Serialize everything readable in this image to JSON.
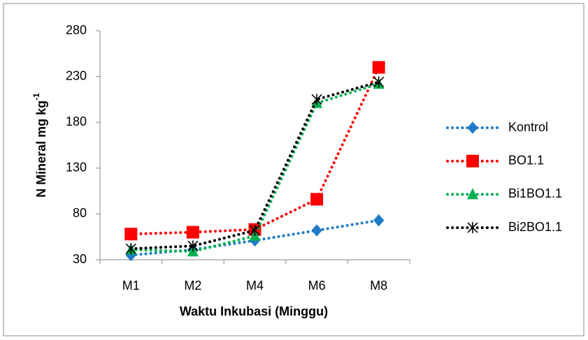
{
  "chart_data": {
    "type": "line",
    "xlabel": "Waktu Inkubasi (Minggu)",
    "ylabel": "N Mineral mg kg",
    "ylabel_sup": "-1",
    "categories": [
      "M1",
      "M2",
      "M4",
      "M6",
      "M8"
    ],
    "ylim": [
      30,
      280
    ],
    "yticks": [
      30,
      80,
      130,
      180,
      230,
      280
    ],
    "grid": false,
    "legend": "right",
    "series": [
      {
        "name": "Kontrol",
        "color": "#1f7bc8",
        "marker": "diamond",
        "values": [
          35,
          41,
          51,
          62,
          73
        ]
      },
      {
        "name": "BO1.1",
        "color": "#ff0000",
        "marker": "square",
        "values": [
          58,
          60,
          63,
          96,
          240
        ]
      },
      {
        "name": "Bi1BO1.1",
        "color": "#00b050",
        "marker": "triangle",
        "values": [
          41,
          39,
          56,
          201,
          222
        ]
      },
      {
        "name": "Bi2BO1.1",
        "color": "#000000",
        "marker": "x",
        "values": [
          42,
          45,
          62,
          205,
          224
        ]
      }
    ]
  }
}
